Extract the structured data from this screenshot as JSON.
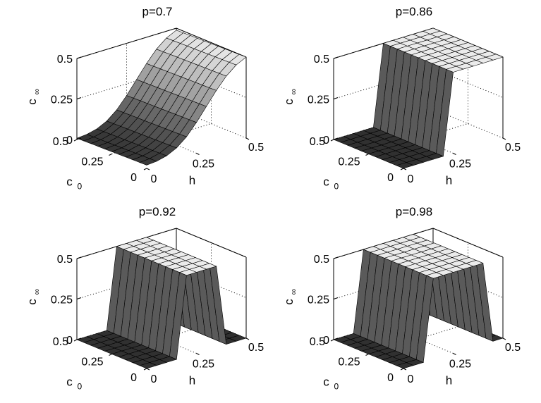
{
  "chart_data": [
    {
      "type": "surface",
      "title": "p=0.7",
      "zlabel": "c",
      "zlabel_sub": "∞",
      "xlabel": "h",
      "ylabel": "c",
      "ylabel_sub": "0",
      "xlim": [
        0,
        0.5
      ],
      "ylim": [
        0,
        0.5
      ],
      "zlim": [
        0,
        0.5
      ],
      "xticks": [
        "0",
        "0.25",
        "0.5"
      ],
      "yticks": [
        "0",
        "0.25",
        "0.5"
      ],
      "zticks": [
        "0",
        "0.25",
        "0.5"
      ],
      "z_profile": [
        0.02,
        0.025,
        0.04,
        0.07,
        0.12,
        0.19,
        0.27,
        0.35,
        0.42,
        0.47,
        0.5
      ]
    },
    {
      "type": "surface",
      "title": "p=0.86",
      "zlabel": "c",
      "zlabel_sub": "∞",
      "xlabel": "h",
      "ylabel": "c",
      "ylabel_sub": "0",
      "xlim": [
        0,
        0.5
      ],
      "ylim": [
        0,
        0.5
      ],
      "zlim": [
        0,
        0.5
      ],
      "xticks": [
        "0",
        "0.25",
        "0.5"
      ],
      "yticks": [
        "0",
        "0.25",
        "0.5"
      ],
      "zticks": [
        "0",
        "0.25",
        "0.5"
      ],
      "z_profile": [
        0,
        0,
        0,
        0,
        0,
        0.5,
        0.5,
        0.5,
        0.5,
        0.5,
        0.5
      ]
    },
    {
      "type": "surface",
      "title": "p=0.92",
      "zlabel": "c",
      "zlabel_sub": "∞",
      "xlabel": "h",
      "ylabel": "c",
      "ylabel_sub": "0",
      "xlim": [
        0,
        0.5
      ],
      "ylim": [
        0,
        0.5
      ],
      "zlim": [
        0,
        0.5
      ],
      "xticks": [
        "0",
        "0.25",
        "0.5"
      ],
      "yticks": [
        "0",
        "0.25",
        "0.5"
      ],
      "zticks": [
        "0",
        "0.25",
        "0.5"
      ],
      "z_profile": [
        0,
        0,
        0,
        0,
        0.5,
        0.5,
        0.5,
        0.5,
        0,
        0,
        0
      ]
    },
    {
      "type": "surface",
      "title": "p=0.98",
      "zlabel": "c",
      "zlabel_sub": "∞",
      "xlabel": "h",
      "ylabel": "c",
      "ylabel_sub": "0",
      "xlim": [
        0,
        0.5
      ],
      "ylim": [
        0,
        0.5
      ],
      "zlim": [
        0,
        0.5
      ],
      "xticks": [
        "0",
        "0.25",
        "0.5"
      ],
      "yticks": [
        "0",
        "0.25",
        "0.5"
      ],
      "zticks": [
        "0",
        "0.25",
        "0.5"
      ],
      "z_profile": [
        0,
        0,
        0,
        0.5,
        0.5,
        0.5,
        0.5,
        0.5,
        0.5,
        0,
        0
      ]
    }
  ]
}
